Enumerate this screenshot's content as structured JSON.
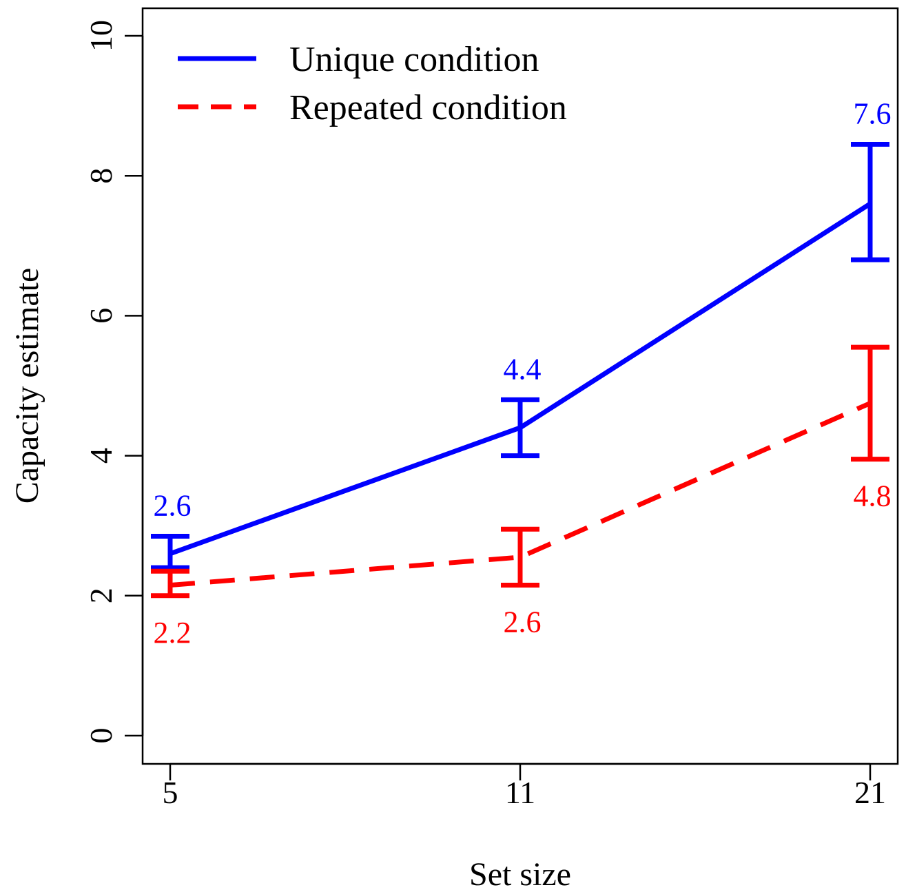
{
  "chart_data": {
    "type": "line",
    "xlabel": "Set size",
    "ylabel": "Capacity estimate",
    "categories": [
      "5",
      "11",
      "21"
    ],
    "ylim": [
      0,
      10
    ],
    "yticks": [
      "0",
      "2",
      "4",
      "6",
      "8",
      "10"
    ],
    "grid": false,
    "legend_position": "top-left",
    "series": [
      {
        "name": "Unique condition",
        "color": "#0000ff",
        "line_style": "solid",
        "values": [
          2.6,
          4.4,
          7.6
        ],
        "error_low": [
          2.4,
          4.0,
          6.8
        ],
        "error_high": [
          2.85,
          4.8,
          8.45
        ],
        "labels": [
          "2.6",
          "4.4",
          "7.6"
        ],
        "label_position": "above"
      },
      {
        "name": "Repeated condition",
        "color": "#ff0000",
        "line_style": "dashed",
        "values": [
          2.15,
          2.55,
          4.75
        ],
        "error_low": [
          2.0,
          2.15,
          3.95
        ],
        "error_high": [
          2.35,
          2.95,
          5.55
        ],
        "labels": [
          "2.2",
          "2.6",
          "4.8"
        ],
        "label_position": "below"
      }
    ]
  }
}
